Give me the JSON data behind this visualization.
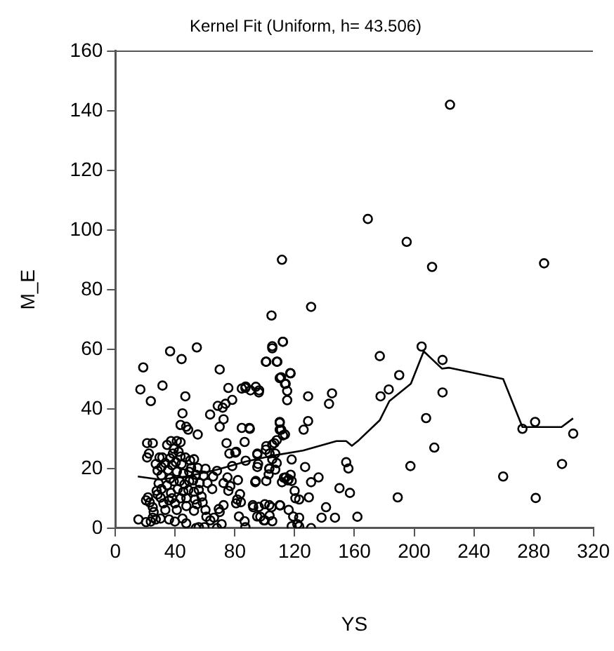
{
  "chart_data": {
    "type": "scatter",
    "title": "Kernel Fit (Uniform, h= 43.506)",
    "xlabel": "YS",
    "ylabel": "M_E",
    "xlim": [
      0,
      320
    ],
    "xticks": [
      0,
      40,
      80,
      120,
      160,
      200,
      240,
      280,
      320
    ],
    "ylim": [
      0,
      160
    ],
    "yticks": [
      0,
      20,
      40,
      60,
      80,
      100,
      120,
      140,
      160
    ],
    "grid": false,
    "legend": false,
    "marker": "circle",
    "series": [
      {
        "type": "scatter",
        "color": "#000000",
        "x": [
          224,
          169,
          195,
          212,
          287,
          111.5,
          131,
          104.5,
          105,
          112,
          101,
          108,
          117,
          110,
          114,
          115,
          115,
          87,
          94,
          96,
          129,
          145,
          143,
          110,
          110,
          113.5,
          129,
          126,
          90,
          108,
          101,
          105,
          95,
          107,
          118,
          95,
          103,
          154.5,
          156,
          127,
          136,
          131,
          114,
          116,
          118,
          94,
          101,
          120,
          123,
          129.5,
          150,
          157,
          141,
          147,
          138,
          162,
          92,
          96,
          103,
          110,
          116,
          123,
          118,
          123,
          131,
          97,
          100,
          105,
          87,
          205,
          219,
          177,
          190,
          183,
          177.5,
          219,
          208,
          213.5,
          197.5,
          189,
          259.6,
          281,
          272.5,
          306.5,
          299,
          281.4,
          18.6,
          16.7,
          23.7,
          31.5,
          36.6,
          44.3,
          54.5,
          46.8,
          44.9,
          43.6,
          47.4,
          48.7,
          55.1,
          69.8,
          63.4,
          68.5,
          71.8,
          73.7,
          75.6,
          72.4,
          69.8,
          78.2,
          84.6,
          87.2,
          90.4,
          96.2,
          84.6,
          89.7,
          105,
          112.2,
          100.7,
          108.4,
          110.9,
          113.5,
          117.3,
          110,
          111,
          112.2,
          106.4,
          100.7,
          95,
          103.2,
          105,
          108,
          107,
          95.5,
          103,
          102.6,
          93.6,
          111.5,
          112.8,
          115.4,
          117.3,
          120.5,
          100,
          104.5,
          110.3,
          103.2,
          99.4,
          92.3,
          82.7,
          86.5,
          94.9,
          119,
          121.8,
          80.8,
          84,
          81.5,
          72.4,
          69.8,
          71.1,
          76.9,
          75,
          82,
          83.4,
          72.4,
          75.6,
          78.2,
          80.8,
          74.4,
          76.3,
          80.2,
          86.5,
          87.2,
          68,
          65.4,
          61.6,
          64.8,
          57.7,
          58.4,
          60.3,
          60.9,
          63.5,
          66,
          69.2,
          52.6,
          55.8,
          53.9,
          59.6,
          68,
          47.4,
          44.9,
          39.8,
          35.9,
          15.4,
          20.5,
          23.7,
          27,
          30.2,
          25,
          21.8,
          20.5,
          23,
          25,
          25.6,
          28.2,
          21.2,
          22.4,
          25,
          21.2,
          27,
          28.2,
          30.8,
          29.5,
          31.4,
          33.4,
          30.8,
          28.9,
          30.8,
          27.6,
          30.2,
          32.1,
          33.4,
          35.9,
          37.2,
          34.6,
          36.6,
          35.3,
          37.9,
          36.6,
          38.5,
          34.6,
          37.2,
          41.1,
          39.1,
          43.6,
          42.3,
          43.6,
          40.4,
          44.3,
          41.1,
          45.5,
          39.1,
          43,
          46.2,
          41.7,
          37.9,
          39.8,
          41.1,
          43.6,
          45.5,
          47.5,
          47.5,
          48.8,
          49.4,
          49.4,
          50,
          46.8,
          50.7,
          52,
          52.6,
          53.2,
          54.5,
          53.9,
          56.4,
          55.8,
          59,
          55.1,
          52.6,
          60.3
        ],
        "values": [
          142,
          103.7,
          96,
          87.6,
          88.8,
          90,
          74.2,
          71.3,
          61,
          62.5,
          55.8,
          55.8,
          52,
          50.3,
          48.4,
          46,
          42.9,
          47,
          47.4,
          45.5,
          44.2,
          45.2,
          41.7,
          35.6,
          33,
          31.4,
          35.9,
          33,
          33.3,
          29.5,
          27.5,
          28,
          24.7,
          25,
          23,
          20.5,
          20,
          22.1,
          20,
          20.5,
          17,
          15.4,
          17,
          16.4,
          15.8,
          15.8,
          15.8,
          12.5,
          9.6,
          10.3,
          13.4,
          11.8,
          7,
          3.5,
          3.5,
          3.8,
          7.7,
          7.1,
          7.7,
          7.7,
          6.1,
          3.5,
          0.6,
          0.6,
          0,
          3.8,
          2.6,
          2.3,
          0.3,
          60.9,
          56.4,
          57.7,
          51.3,
          46.5,
          44.2,
          45.5,
          36.9,
          27,
          20.8,
          10.3,
          17.3,
          35.6,
          33.3,
          31.7,
          21.5,
          10.1,
          53.9,
          46.5,
          42.6,
          47.8,
          59.3,
          56.7,
          60.6,
          44.2,
          38.5,
          34.6,
          34,
          33,
          31.4,
          53.2,
          38.1,
          41,
          40.4,
          41.7,
          47,
          36.5,
          34,
          43,
          46.8,
          47.5,
          46.2,
          46.2,
          33.6,
          33.6,
          60.3,
          62.5,
          55.8,
          55.8,
          50.6,
          48.4,
          51.9,
          35.3,
          33,
          31.1,
          28.5,
          26.3,
          25,
          25,
          23.1,
          21.8,
          19.6,
          21.5,
          19.9,
          18,
          15.4,
          15.4,
          16.9,
          16,
          17.9,
          10,
          8,
          7,
          7.6,
          4.2,
          2.6,
          7,
          3.9,
          2.3,
          3.9,
          3.9,
          1.3,
          8.3,
          8.7,
          9.6,
          7.7,
          5.4,
          1.3,
          14.1,
          17,
          16.1,
          11.4,
          15.1,
          12.5,
          20.8,
          25.6,
          28.5,
          25,
          25.3,
          28.9,
          22.6,
          19.2,
          17.3,
          15.1,
          13.1,
          10.6,
          8.6,
          6.1,
          3.8,
          2.6,
          3.5,
          6.4,
          5.8,
          0.3,
          0,
          0.3,
          0,
          1.6,
          3.2,
          2.2,
          2.9,
          2.9,
          2,
          2.2,
          2.9,
          3.2,
          3.5,
          10.3,
          9.3,
          8.6,
          7,
          5.4,
          11.3,
          23.7,
          25,
          28.5,
          28.5,
          21.5,
          19.3,
          17.7,
          23.7,
          23.7,
          21.8,
          20.5,
          15,
          13.1,
          12.5,
          10.2,
          8.3,
          6.1,
          9.3,
          11.8,
          14.4,
          16.6,
          19.5,
          21.1,
          23.4,
          25,
          27.9,
          29.2,
          29.2,
          26.6,
          28.8,
          25.6,
          24,
          22.1,
          21.5,
          18.9,
          18.3,
          15.7,
          15.7,
          14.7,
          13.1,
          10,
          8.3,
          6.1,
          10,
          12.2,
          10,
          7.4,
          12.8,
          15.7,
          18.9,
          22.7,
          23.7,
          20.2,
          16,
          12.2,
          9.6,
          8,
          17.9,
          15.1,
          12.8,
          17.6,
          20.2,
          23.1,
          19.9
        ]
      },
      {
        "type": "line",
        "color": "#000000",
        "marker": "none",
        "line_style": "solid",
        "x": [
          15,
          29.5,
          48.7,
          68,
          87.2,
          106.4,
          125.6,
          148,
          154.5,
          158.3,
          163,
          177,
          183.4,
          197.8,
          206.4,
          218.6,
          223.4,
          259.6,
          272.5,
          298.7,
          306.4
        ],
        "values": [
          17.3,
          16.3,
          17.4,
          19.6,
          22.3,
          24.4,
          26,
          29.2,
          29.2,
          27.6,
          29.5,
          36.2,
          42.6,
          48.4,
          59.3,
          53.5,
          53.8,
          50,
          33.9,
          33.9,
          36.8
        ]
      }
    ]
  }
}
